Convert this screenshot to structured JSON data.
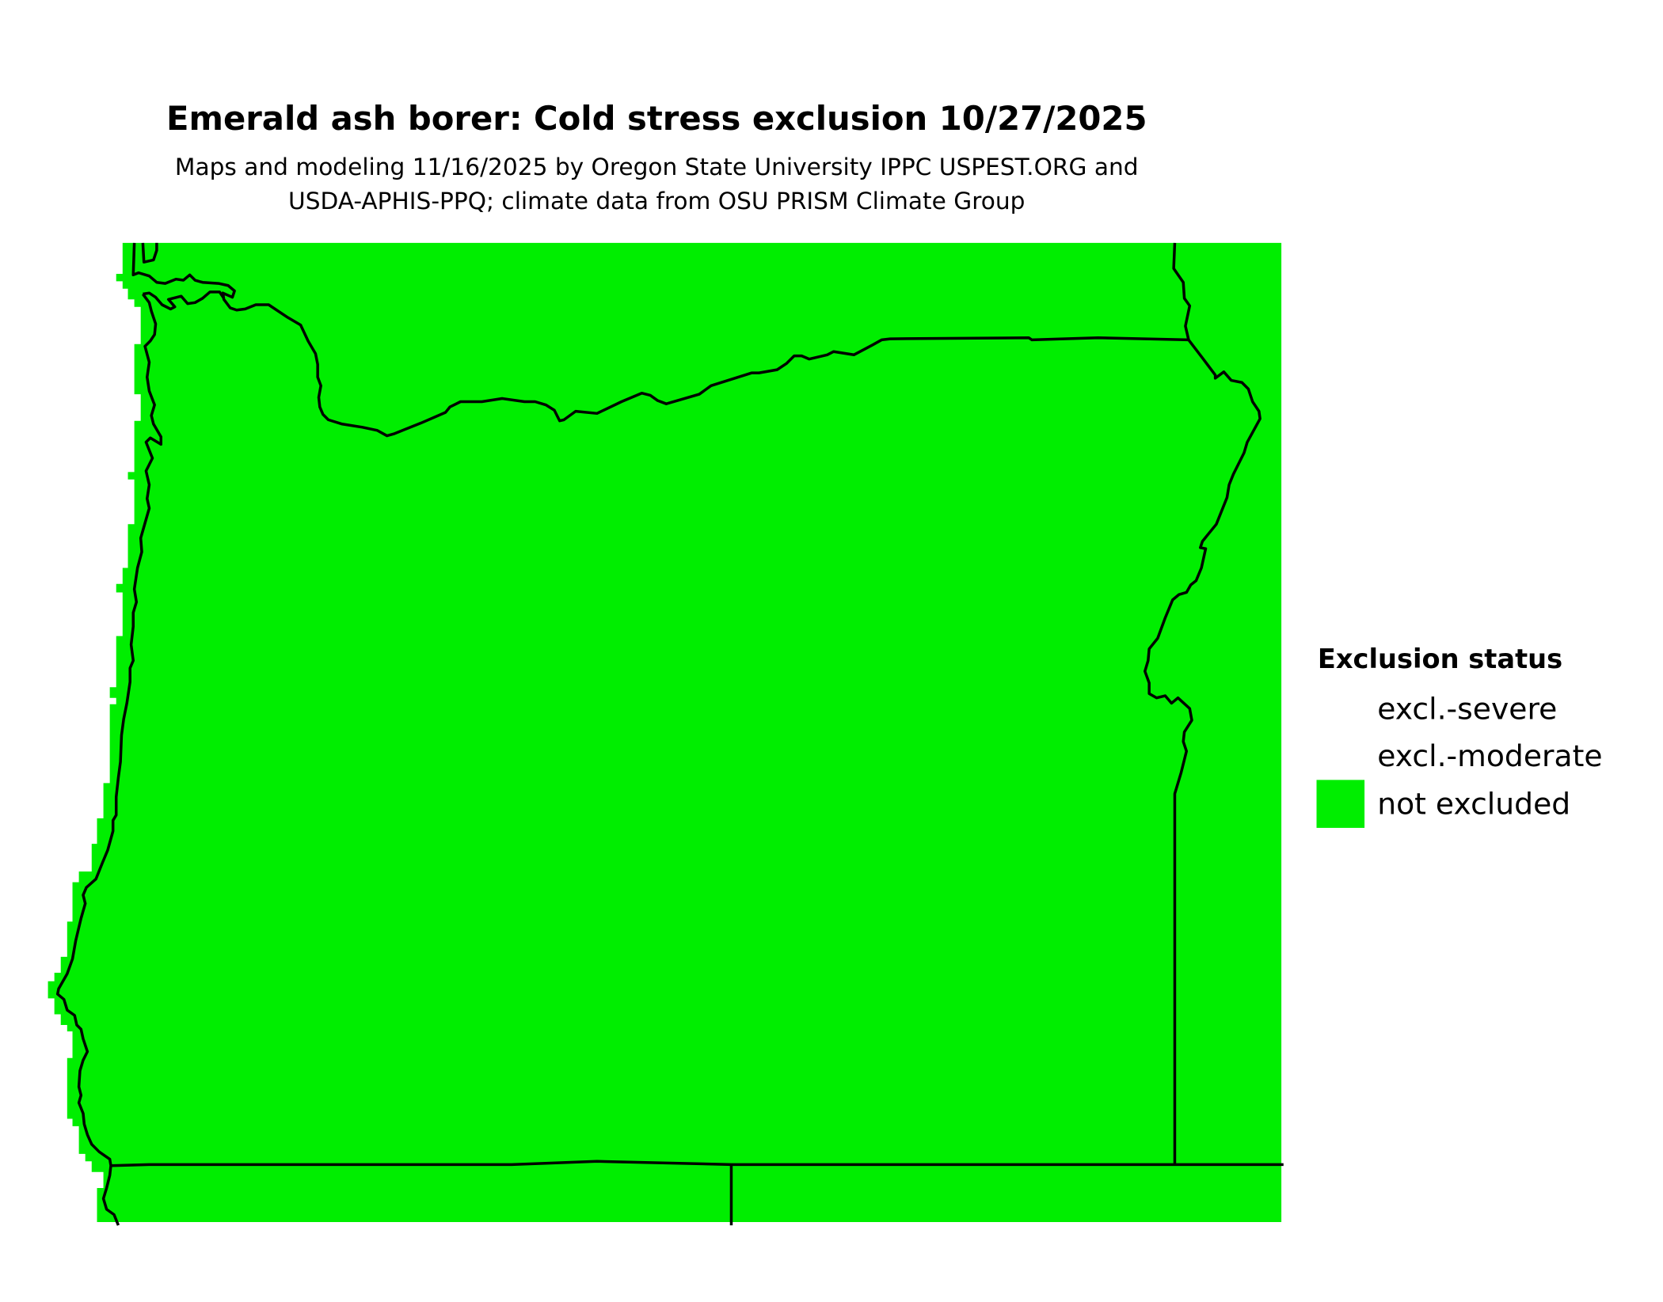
{
  "title": "Emerald ash borer: Cold stress exclusion 10/27/2025",
  "subtitle": {
    "line1": "Maps and modeling 11/16/2025 by Oregon State University IPPC USPEST.ORG and",
    "line2": "USDA-APHIS-PPQ; climate data from OSU PRISM Climate Group"
  },
  "legend": {
    "title": "Exclusion status",
    "items": [
      {
        "label": "excl.-severe",
        "color": "#ffffff"
      },
      {
        "label": "excl.-moderate",
        "color": "#ffffff"
      },
      {
        "label": "not excluded",
        "color": "#00ee00"
      }
    ]
  },
  "map": {
    "region": "Oregon",
    "fill_status": "not excluded",
    "fill_color": "#00ee00",
    "border_color": "#000000"
  }
}
